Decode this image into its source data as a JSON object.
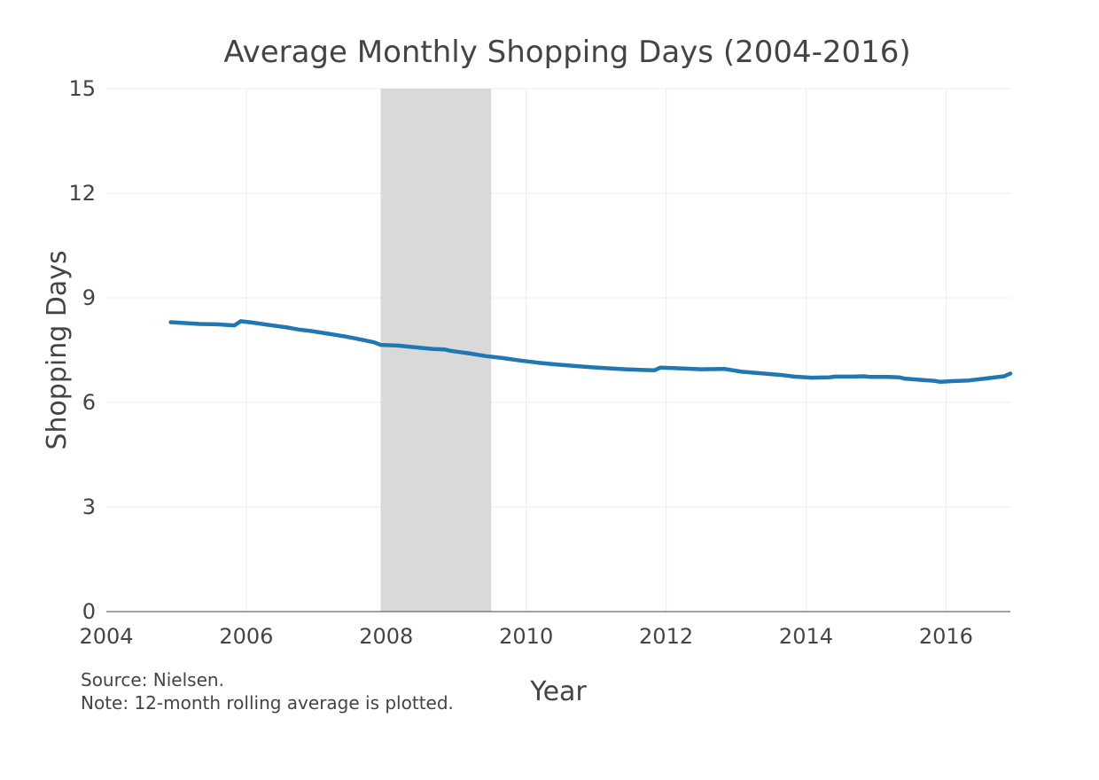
{
  "chart_data": {
    "type": "line",
    "title": "Average Monthly Shopping Days (2004-2016)",
    "xlabel": "Year",
    "ylabel": "Shopping Days",
    "xlim": [
      2004,
      2016.92
    ],
    "ylim": [
      0,
      15
    ],
    "xticks": [
      2004,
      2006,
      2008,
      2010,
      2012,
      2014,
      2016
    ],
    "yticks": [
      0,
      3,
      6,
      9,
      12,
      15
    ],
    "grid": true,
    "legend": "none",
    "line_color": "#1f77b4",
    "shade_color": "#d9d9d9",
    "shaded_region": {
      "x_start": 2007.92,
      "x_end": 2009.5
    },
    "series": [
      {
        "x": [
          2004.92,
          2005.08,
          2005.33,
          2005.58,
          2005.75,
          2005.83,
          2005.92,
          2006.08,
          2006.33,
          2006.58,
          2006.75,
          2006.92,
          2007.17,
          2007.42,
          2007.67,
          2007.83,
          2007.92,
          2008.17,
          2008.42,
          2008.67,
          2008.83,
          2008.92,
          2009.17,
          2009.42,
          2009.67,
          2009.92,
          2010.17,
          2010.42,
          2010.67,
          2010.92,
          2011.17,
          2011.42,
          2011.67,
          2011.83,
          2011.92,
          2012.17,
          2012.5,
          2012.83,
          2013.08,
          2013.33,
          2013.67,
          2013.83,
          2014.08,
          2014.33,
          2014.42,
          2014.67,
          2014.83,
          2014.92,
          2015.17,
          2015.33,
          2015.42,
          2015.67,
          2015.83,
          2015.92,
          2016.08,
          2016.33,
          2016.58,
          2016.83,
          2016.92
        ],
        "y": [
          8.3,
          8.28,
          8.25,
          8.24,
          8.22,
          8.21,
          8.33,
          8.29,
          8.22,
          8.15,
          8.09,
          8.05,
          7.97,
          7.89,
          7.79,
          7.72,
          7.65,
          7.63,
          7.58,
          7.53,
          7.52,
          7.48,
          7.41,
          7.33,
          7.27,
          7.2,
          7.14,
          7.09,
          7.05,
          7.01,
          6.98,
          6.95,
          6.93,
          6.92,
          7.0,
          6.98,
          6.95,
          6.96,
          6.88,
          6.84,
          6.78,
          6.74,
          6.71,
          6.72,
          6.74,
          6.74,
          6.75,
          6.73,
          6.73,
          6.72,
          6.68,
          6.64,
          6.62,
          6.59,
          6.61,
          6.63,
          6.69,
          6.75,
          6.83
        ]
      }
    ]
  },
  "notes": {
    "source": "Source: Nielsen.",
    "note": "Note: 12-month rolling average is plotted."
  }
}
